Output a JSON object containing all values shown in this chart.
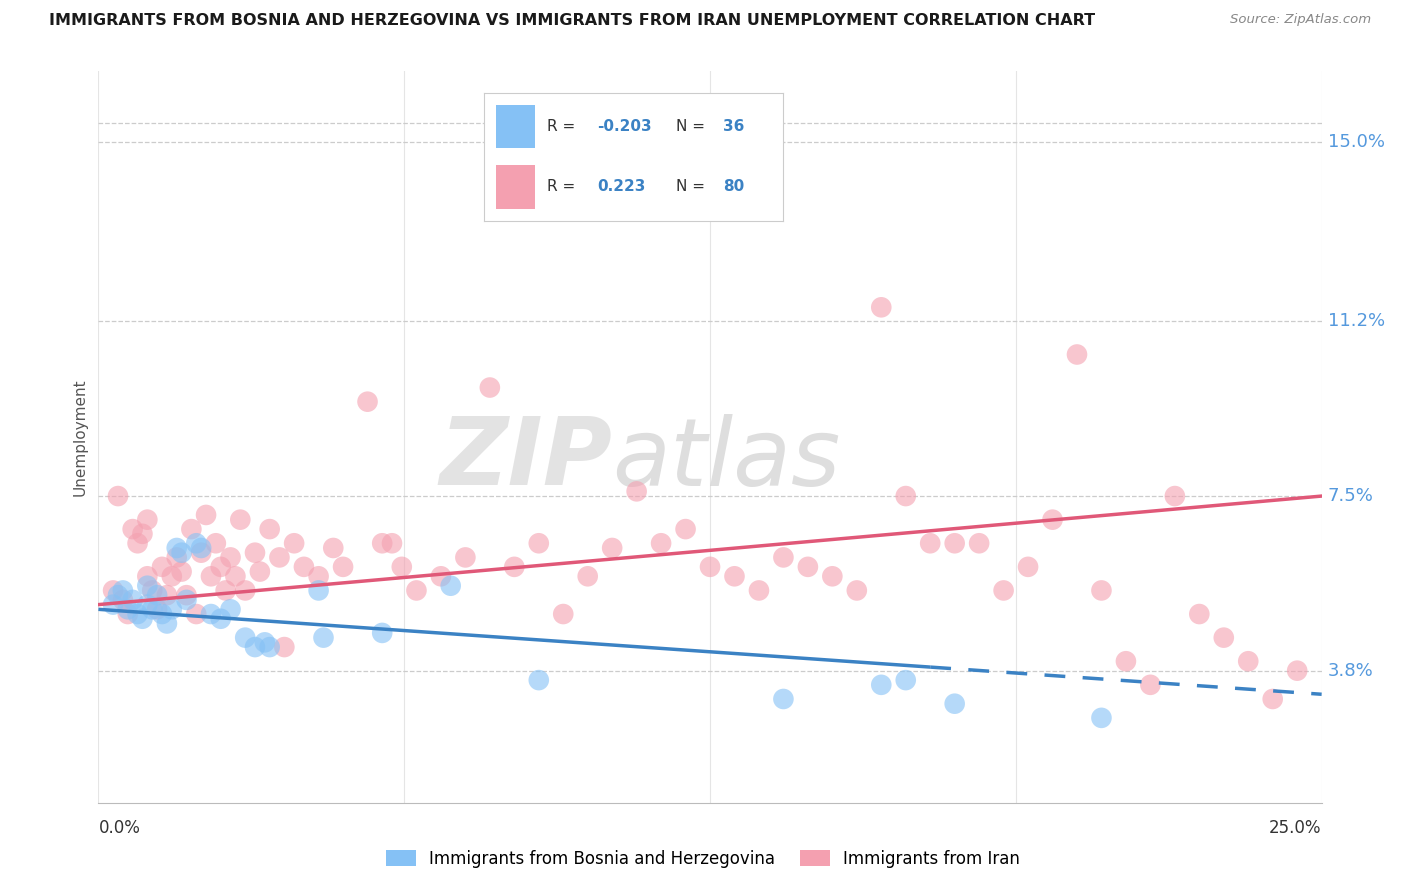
{
  "title": "IMMIGRANTS FROM BOSNIA AND HERZEGOVINA VS IMMIGRANTS FROM IRAN UNEMPLOYMENT CORRELATION CHART",
  "source": "Source: ZipAtlas.com",
  "ylabel": "Unemployment",
  "xlim": [
    0.0,
    25.0
  ],
  "ylim": [
    1.0,
    16.5
  ],
  "y_ticks_labeled": [
    3.8,
    7.5,
    11.2,
    15.0
  ],
  "legend1_label": "Immigrants from Bosnia and Herzegovina",
  "legend2_label": "Immigrants from Iran",
  "R_bosnia": -0.203,
  "N_bosnia": 36,
  "R_iran": 0.223,
  "N_iran": 80,
  "color_bosnia": "#85c1f5",
  "color_iran": "#f4a0b0",
  "color_bosnia_line": "#3b82c4",
  "color_iran_line": "#e05878",
  "bosnia_line_x": [
    0,
    25
  ],
  "bosnia_line_y": [
    5.1,
    3.3
  ],
  "bosnia_dash_start_x": 17,
  "iran_line_x": [
    0,
    25
  ],
  "iran_line_y": [
    5.2,
    7.5
  ],
  "bosnia_scatter": [
    [
      0.3,
      5.2
    ],
    [
      0.4,
      5.4
    ],
    [
      0.5,
      5.5
    ],
    [
      0.6,
      5.1
    ],
    [
      0.7,
      5.3
    ],
    [
      0.8,
      5.0
    ],
    [
      0.9,
      4.9
    ],
    [
      1.0,
      5.2
    ],
    [
      1.0,
      5.6
    ],
    [
      1.1,
      5.1
    ],
    [
      1.2,
      5.4
    ],
    [
      1.3,
      5.0
    ],
    [
      1.4,
      4.8
    ],
    [
      1.5,
      5.1
    ],
    [
      1.6,
      6.4
    ],
    [
      1.7,
      6.3
    ],
    [
      1.8,
      5.3
    ],
    [
      2.0,
      6.5
    ],
    [
      2.1,
      6.4
    ],
    [
      2.3,
      5.0
    ],
    [
      2.5,
      4.9
    ],
    [
      2.7,
      5.1
    ],
    [
      3.0,
      4.5
    ],
    [
      3.2,
      4.3
    ],
    [
      3.4,
      4.4
    ],
    [
      3.5,
      4.3
    ],
    [
      4.5,
      5.5
    ],
    [
      4.6,
      4.5
    ],
    [
      5.8,
      4.6
    ],
    [
      7.2,
      5.6
    ],
    [
      9.0,
      3.6
    ],
    [
      14.0,
      3.2
    ],
    [
      16.0,
      3.5
    ],
    [
      16.5,
      3.6
    ],
    [
      17.5,
      3.1
    ],
    [
      20.5,
      2.8
    ]
  ],
  "iran_scatter": [
    [
      0.3,
      5.5
    ],
    [
      0.4,
      7.5
    ],
    [
      0.5,
      5.3
    ],
    [
      0.6,
      5.0
    ],
    [
      0.7,
      6.8
    ],
    [
      0.8,
      6.5
    ],
    [
      0.9,
      6.7
    ],
    [
      1.0,
      5.8
    ],
    [
      1.0,
      7.0
    ],
    [
      1.1,
      5.5
    ],
    [
      1.2,
      5.1
    ],
    [
      1.3,
      6.0
    ],
    [
      1.4,
      5.4
    ],
    [
      1.5,
      5.8
    ],
    [
      1.6,
      6.2
    ],
    [
      1.7,
      5.9
    ],
    [
      1.8,
      5.4
    ],
    [
      1.9,
      6.8
    ],
    [
      2.0,
      5.0
    ],
    [
      2.1,
      6.3
    ],
    [
      2.2,
      7.1
    ],
    [
      2.3,
      5.8
    ],
    [
      2.4,
      6.5
    ],
    [
      2.5,
      6.0
    ],
    [
      2.6,
      5.5
    ],
    [
      2.7,
      6.2
    ],
    [
      2.8,
      5.8
    ],
    [
      2.9,
      7.0
    ],
    [
      3.0,
      5.5
    ],
    [
      3.2,
      6.3
    ],
    [
      3.3,
      5.9
    ],
    [
      3.5,
      6.8
    ],
    [
      3.7,
      6.2
    ],
    [
      3.8,
      4.3
    ],
    [
      4.0,
      6.5
    ],
    [
      4.2,
      6.0
    ],
    [
      4.5,
      5.8
    ],
    [
      4.8,
      6.4
    ],
    [
      5.0,
      6.0
    ],
    [
      5.5,
      9.5
    ],
    [
      5.8,
      6.5
    ],
    [
      6.0,
      6.5
    ],
    [
      6.2,
      6.0
    ],
    [
      6.5,
      5.5
    ],
    [
      7.0,
      5.8
    ],
    [
      7.5,
      6.2
    ],
    [
      8.0,
      9.8
    ],
    [
      8.5,
      6.0
    ],
    [
      9.0,
      6.5
    ],
    [
      9.5,
      5.0
    ],
    [
      10.0,
      5.8
    ],
    [
      10.5,
      6.4
    ],
    [
      11.0,
      7.6
    ],
    [
      11.5,
      6.5
    ],
    [
      12.0,
      6.8
    ],
    [
      12.5,
      6.0
    ],
    [
      13.0,
      5.8
    ],
    [
      13.5,
      5.5
    ],
    [
      14.0,
      6.2
    ],
    [
      14.5,
      6.0
    ],
    [
      15.0,
      5.8
    ],
    [
      15.5,
      5.5
    ],
    [
      16.0,
      11.5
    ],
    [
      16.5,
      7.5
    ],
    [
      17.0,
      6.5
    ],
    [
      17.5,
      6.5
    ],
    [
      18.0,
      6.5
    ],
    [
      18.5,
      5.5
    ],
    [
      19.0,
      6.0
    ],
    [
      19.5,
      7.0
    ],
    [
      20.0,
      10.5
    ],
    [
      20.5,
      5.5
    ],
    [
      21.0,
      4.0
    ],
    [
      21.5,
      3.5
    ],
    [
      22.0,
      7.5
    ],
    [
      22.5,
      5.0
    ],
    [
      23.0,
      4.5
    ],
    [
      23.5,
      4.0
    ],
    [
      24.0,
      3.2
    ],
    [
      24.5,
      3.8
    ]
  ]
}
